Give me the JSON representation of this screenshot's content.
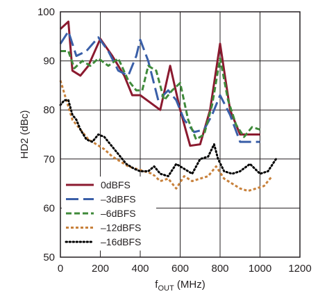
{
  "chart_data": {
    "type": "line",
    "xlabel_main": "f",
    "xlabel_sub": "OUT",
    "xlabel_unit": " (MHz)",
    "ylabel": "HD2 (dBc)",
    "xlim": [
      0,
      1200
    ],
    "ylim": [
      50,
      100
    ],
    "xticks": [
      0,
      200,
      400,
      600,
      800,
      1000,
      1200
    ],
    "yticks": [
      50,
      60,
      70,
      80,
      90,
      100
    ],
    "grid": true,
    "legend_position": "lower-left",
    "series": [
      {
        "name": "0dBFS",
        "color": "#8b1a2f",
        "dash": "solid",
        "x": [
          0,
          40,
          60,
          100,
          140,
          200,
          260,
          320,
          360,
          400,
          450,
          500,
          550,
          600,
          650,
          700,
          750,
          800,
          850,
          900,
          950,
          1000
        ],
        "y": [
          96.5,
          98,
          88,
          87,
          89,
          94.5,
          91,
          87,
          83,
          83,
          81.5,
          80,
          89,
          80,
          72.7,
          73,
          80,
          93.5,
          80,
          75,
          75,
          75
        ]
      },
      {
        "name": "–3dBFS",
        "color": "#3a5fa8",
        "dash": "long",
        "x": [
          0,
          40,
          80,
          130,
          190,
          240,
          290,
          340,
          380,
          400,
          440,
          490,
          540,
          580,
          620,
          670,
          720,
          760,
          800,
          850,
          900,
          950,
          1000
        ],
        "y": [
          93.5,
          96,
          91,
          92,
          94.8,
          92,
          88,
          87,
          91,
          94.3,
          90,
          82,
          84,
          82,
          78,
          75.5,
          76,
          79,
          83,
          79,
          73.5,
          73.5,
          73.5
        ]
      },
      {
        "name": "–6dBFS",
        "color": "#3f8a3a",
        "dash": "medium",
        "x": [
          0,
          40,
          70,
          110,
          150,
          190,
          240,
          290,
          340,
          380,
          410,
          440,
          480,
          520,
          560,
          600,
          640,
          680,
          720,
          760,
          800,
          840,
          880,
          920,
          960,
          1000
        ],
        "y": [
          92,
          92,
          88.5,
          90,
          89,
          90.5,
          89,
          90.5,
          86,
          84,
          84,
          89,
          88,
          82,
          84,
          85.5,
          78,
          74,
          75,
          81,
          90.5,
          82,
          77,
          74.5,
          76.5,
          76
        ]
      },
      {
        "name": "–12dBFS",
        "color": "#c8813b",
        "dash": "short",
        "x": [
          0,
          30,
          60,
          100,
          140,
          180,
          220,
          260,
          300,
          340,
          380,
          420,
          460,
          500,
          540,
          580,
          620,
          660,
          700,
          740,
          780,
          820,
          860,
          900,
          940,
          980,
          1020,
          1060
        ],
        "y": [
          86,
          82,
          78,
          76,
          74,
          73,
          72,
          70.5,
          69.5,
          68.5,
          68,
          67.5,
          67,
          65.5,
          66,
          64,
          66.5,
          65.5,
          66,
          66.5,
          68.5,
          66,
          65,
          64,
          63.5,
          64,
          64.5,
          66.5
        ]
      },
      {
        "name": "–16dBFS",
        "color": "#000000",
        "dash": "dotted",
        "x": [
          0,
          20,
          40,
          60,
          80,
          100,
          130,
          160,
          190,
          220,
          250,
          290,
          330,
          370,
          400,
          440,
          470,
          500,
          540,
          580,
          620,
          660,
          700,
          740,
          770,
          790,
          820,
          860,
          900,
          950,
          1000,
          1040,
          1080
        ],
        "y": [
          81,
          82,
          82,
          79,
          78,
          76,
          74,
          73.5,
          75,
          74.5,
          73,
          71,
          69,
          68,
          67.5,
          67.5,
          68.5,
          67,
          66.5,
          69,
          68,
          67,
          70,
          70.5,
          73,
          70,
          67.5,
          67,
          67.5,
          69,
          67,
          67.5,
          70
        ]
      }
    ]
  }
}
